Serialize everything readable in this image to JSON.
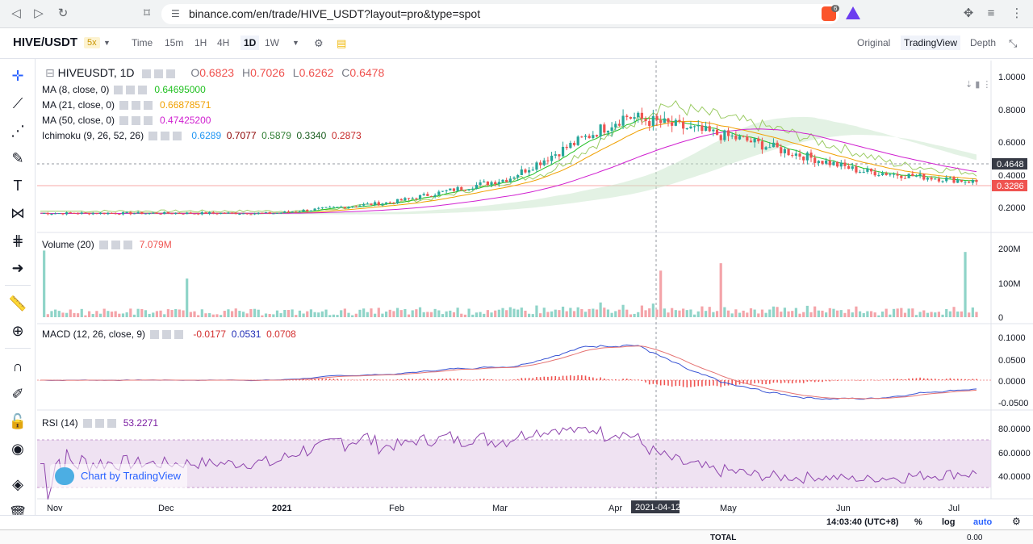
{
  "browser": {
    "url": "binance.com/en/trade/HIVE_USDT?layout=pro&type=spot",
    "brave_badge": "6"
  },
  "toolbar": {
    "symbol": "HIVE/USDT",
    "leverage": "5x",
    "intervals": [
      "Time",
      "15m",
      "1H",
      "4H",
      "1D",
      "1W"
    ],
    "active_interval": "1D",
    "views": [
      "Original",
      "TradingView",
      "Depth"
    ],
    "active_view": "TradingView"
  },
  "chart": {
    "title": "HIVEUSDT, 1D",
    "open_label": "O",
    "open": "0.6823",
    "high_label": "H",
    "high": "0.7026",
    "low_label": "L",
    "low": "0.6262",
    "close_label": "C",
    "close": "0.6478",
    "indicators": [
      {
        "name": "MA (8, close, 0)",
        "value": "0.64695000",
        "color": "#22c022"
      },
      {
        "name": "MA (21, close, 0)",
        "value": "0.66878571",
        "color": "#f0a000"
      },
      {
        "name": "MA (50, close, 0)",
        "value": "0.47425200",
        "color": "#d020d0"
      }
    ],
    "ichimoku": {
      "name": "Ichimoku (9, 26, 52, 26)",
      "values": [
        "0.6289",
        "0.7077",
        "0.5879",
        "0.3340",
        "0.2873"
      ],
      "colors": [
        "#2196f3",
        "#8b0000",
        "#2e7d32",
        "#1b5e20",
        "#c62828"
      ]
    },
    "volume": {
      "name": "Volume (20)",
      "value": "7.079M"
    },
    "macd": {
      "name": "MACD (12, 26, close, 9)",
      "values": [
        "-0.0177",
        "0.0531",
        "0.0708"
      ]
    },
    "rsi": {
      "name": "RSI (14)",
      "value": "53.2271"
    },
    "price_axis": [
      "1.0000",
      "0.8000",
      "0.6000",
      "0.4000",
      "0.2000"
    ],
    "price_tag_1": "0.4648",
    "price_tag_2": "0.3286",
    "volume_axis": [
      "200M",
      "100M",
      "0"
    ],
    "macd_axis": [
      "0.1000",
      "0.0500",
      "0.0000",
      "-0.0500"
    ],
    "rsi_axis": [
      "80.0000",
      "60.0000",
      "40.0000"
    ],
    "time_axis": [
      "Nov",
      "Dec",
      "2021",
      "Feb",
      "Mar",
      "Apr",
      "May",
      "Jun",
      "Jul"
    ],
    "crosshair_date": "2021-04-12",
    "badge": "Chart by TradingView"
  },
  "bottom": {
    "time": "14:03:40 (UTC+8)",
    "pct": "%",
    "log": "log",
    "auto": "auto"
  },
  "footer": {
    "total_label": "TOTAL",
    "total_value": "0.00"
  },
  "chart_data": {
    "type": "line",
    "title": "HIVEUSDT, 1D",
    "x": [
      "Nov",
      "Dec",
      "2021",
      "Feb",
      "Mar",
      "Apr",
      "May",
      "Jun",
      "Jul"
    ],
    "series": [
      {
        "name": "HIVEUSDT",
        "values": [
          0.13,
          0.13,
          0.13,
          0.2,
          0.35,
          0.75,
          0.6,
          0.4,
          0.33
        ]
      }
    ],
    "ylim": [
      0.1,
      1.0
    ]
  }
}
